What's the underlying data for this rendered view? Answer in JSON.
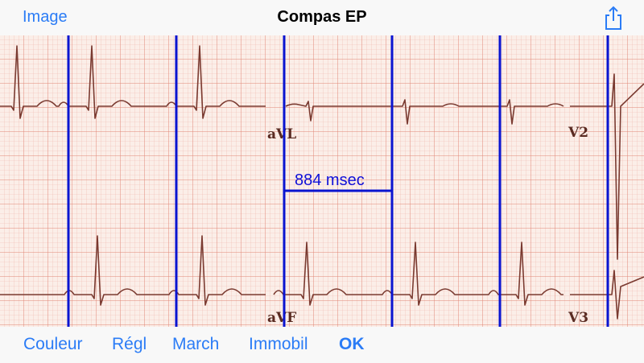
{
  "nav": {
    "back_label": "Image",
    "title": "Compas EP",
    "share_icon": "share-icon"
  },
  "ecg": {
    "lead_labels": [
      "aVL",
      "V2",
      "aVF",
      "V3"
    ],
    "measurement": "884 msec",
    "caliper_color": "#0a14d0"
  },
  "toolbar": {
    "items": [
      "Couleur",
      "Régl",
      "March",
      "Immobil",
      "OK"
    ]
  },
  "colors": {
    "accent": "#2b7cf6",
    "grid_minor": "#efb7ae",
    "grid_major": "#e08676",
    "trace": "#7a3a30"
  }
}
